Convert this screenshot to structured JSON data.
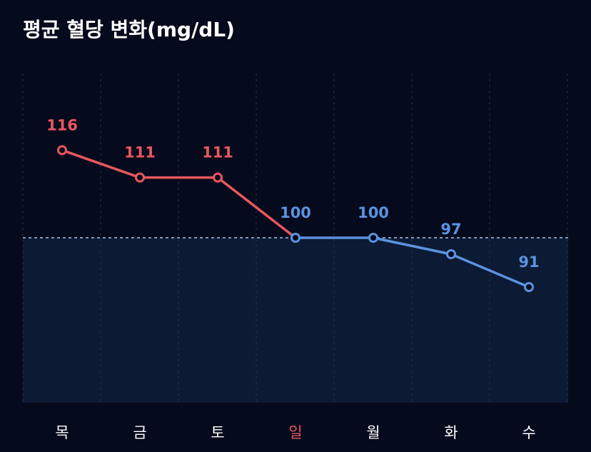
{
  "title": "평균 혈당 변화(mg/dL)",
  "chart_data": {
    "type": "line",
    "title": "평균 혈당 변화(mg/dL)",
    "categories": [
      "목",
      "금",
      "토",
      "일",
      "월",
      "화",
      "수"
    ],
    "values": [
      116,
      111,
      111,
      100,
      100,
      97,
      91
    ],
    "ylim": [
      70,
      130
    ],
    "reference_line": 100,
    "highlight_category": "일",
    "grid": true,
    "legend": "none"
  },
  "colors": {
    "background": "#060a1d",
    "above_reference": "#e8575e",
    "below_reference": "#5b93e0",
    "reference_line": "#a8c4ee",
    "reference_fill": "#0c1a34",
    "tick_label": "#ffffff",
    "highlight_tick": "#e8575e",
    "grid": "#2a3350"
  }
}
